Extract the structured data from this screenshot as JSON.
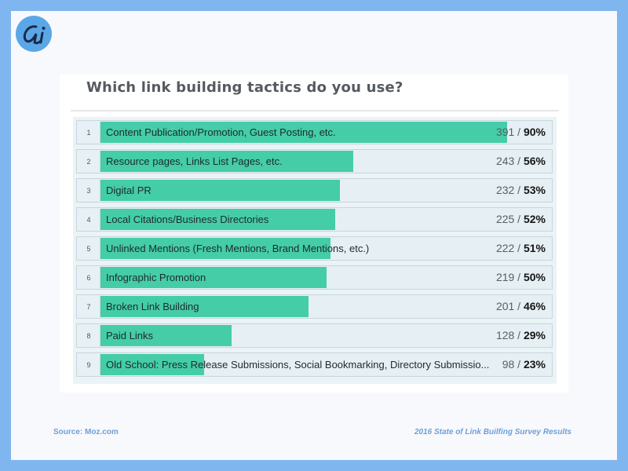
{
  "brand": {
    "logo_letters": "ai",
    "logo_color": "#5aa7e8",
    "frame_color": "#7fb6ef"
  },
  "chart_data": {
    "type": "bar",
    "orientation": "horizontal",
    "title": "Which link building tactics do you use?",
    "bar_color": "#44cda7",
    "xlim": [
      0,
      100
    ],
    "rows": [
      {
        "rank": "1",
        "label": "Content Publication/Promotion, Guest Posting, etc.",
        "count": "391",
        "percent": "90%",
        "value": 90
      },
      {
        "rank": "2",
        "label": "Resource pages, Links List Pages, etc.",
        "count": "243",
        "percent": "56%",
        "value": 56
      },
      {
        "rank": "3",
        "label": "Digital PR",
        "count": "232",
        "percent": "53%",
        "value": 53
      },
      {
        "rank": "4",
        "label": "Local Citations/Business Directories",
        "count": "225",
        "percent": "52%",
        "value": 52
      },
      {
        "rank": "5",
        "label": "Unlinked Mentions (Fresh Mentions, Brand Mentions, etc.)",
        "count": "222",
        "percent": "51%",
        "value": 51
      },
      {
        "rank": "6",
        "label": "Infographic Promotion",
        "count": "219",
        "percent": "50%",
        "value": 50
      },
      {
        "rank": "7",
        "label": "Broken Link Building",
        "count": "201",
        "percent": "46%",
        "value": 46
      },
      {
        "rank": "8",
        "label": "Paid Links",
        "count": "128",
        "percent": "29%",
        "value": 29
      },
      {
        "rank": "9",
        "label": "Old School: Press Release Submissions, Social Bookmarking, Directory Submissio...",
        "count": "98",
        "percent": "23%",
        "value": 23
      }
    ]
  },
  "footer": {
    "source": "Source: Moz.com",
    "caption": "2016 State of Link Builfing Survey Results"
  }
}
